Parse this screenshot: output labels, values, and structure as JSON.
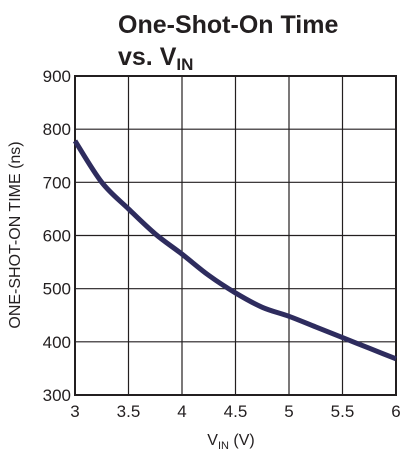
{
  "chart_data": {
    "type": "line",
    "title": {
      "line1": "One-Shot-On Time",
      "line2_prefix": "vs. V",
      "line2_sub": "IN"
    },
    "xlabel": {
      "prefix": "V",
      "sub": "IN",
      "suffix": " (V)"
    },
    "ylabel": "ONE-SHOT-ON TIME (ns)",
    "xlim": [
      3,
      6
    ],
    "ylim": [
      300,
      900
    ],
    "x_ticks": [
      3,
      3.5,
      4,
      4.5,
      5,
      5.5,
      6
    ],
    "y_ticks": [
      300,
      400,
      500,
      600,
      700,
      800,
      900
    ],
    "grid": true,
    "series": [
      {
        "color": "#2e2c5e",
        "x": [
          3.0,
          3.25,
          3.5,
          3.75,
          4.0,
          4.25,
          4.5,
          4.75,
          5.0,
          5.25,
          5.5,
          5.75,
          6.0
        ],
        "y": [
          778,
          700,
          650,
          603,
          565,
          525,
          492,
          465,
          448,
          428,
          408,
          388,
          368
        ]
      }
    ]
  }
}
